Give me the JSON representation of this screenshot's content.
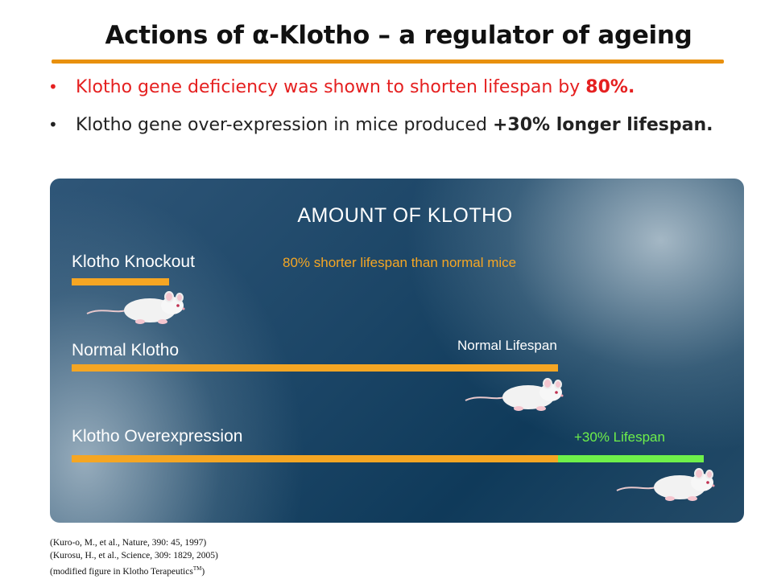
{
  "slide": {
    "title": "Actions of α-Klotho – a regulator of ageing",
    "bullets": [
      {
        "marker": "•",
        "text": "Klotho gene deficiency was shown to shorten lifespan by ",
        "bold": "80%.",
        "color": "#e52020"
      },
      {
        "marker": "•",
        "text": "Klotho gene over-expression in mice produced ",
        "bold": "+30% longer lifespan.",
        "color": "#222222"
      }
    ]
  },
  "figure": {
    "title": "AMOUNT OF KLOTHO",
    "rows": [
      {
        "label": "Klotho Knockout",
        "note": "80% shorter lifespan than normal mice",
        "note_color": "#f5a623",
        "relative_amount": 0.2
      },
      {
        "label": "Normal Klotho",
        "note": "Normal Lifespan",
        "note_color": "#ffffff",
        "relative_amount": 1.0
      },
      {
        "label": "Klotho Overexpression",
        "note": "+30% Lifespan",
        "note_color": "#6ef04a",
        "relative_amount": 1.3
      }
    ],
    "colors": {
      "bar": "#f5a623",
      "extra": "#6ef04a"
    },
    "icon": "mouse-icon"
  },
  "references": [
    "(Kuro-o, M., et al., Nature, 390: 45, 1997)",
    "(Kurosu, H., et al., Science, 309: 1829, 2005)",
    "(modified figure in Klotho Terapeutics",
    "TM",
    ")"
  ]
}
